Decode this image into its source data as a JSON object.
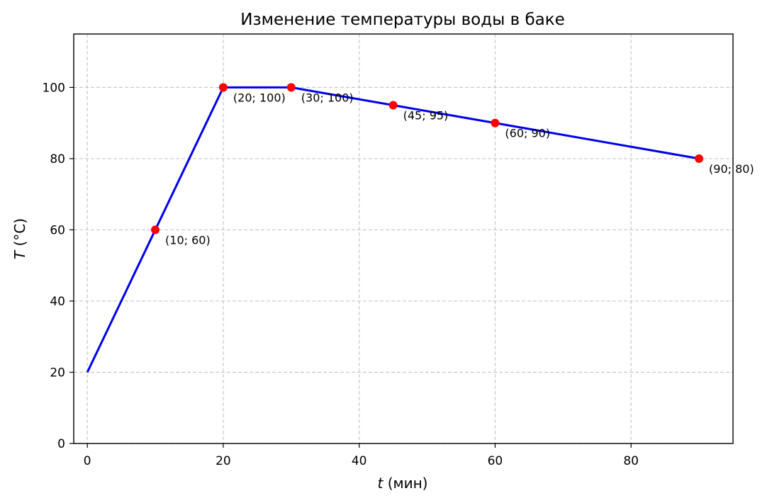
{
  "chart_data": {
    "type": "line",
    "title": "Изменение температуры воды в баке",
    "xlabel_var": "t",
    "xlabel_unit": " (мин)",
    "ylabel_var": "T",
    "ylabel_unit": " (°C)",
    "xlim": [
      -2,
      95
    ],
    "ylim": [
      0,
      115
    ],
    "xticks": [
      0,
      20,
      40,
      60,
      80
    ],
    "yticks": [
      0,
      20,
      40,
      60,
      80,
      100
    ],
    "grid": true,
    "series": [
      {
        "x": [
          0,
          10,
          20,
          30,
          45,
          60,
          90
        ],
        "y": [
          20,
          60,
          100,
          100,
          95,
          90,
          80
        ],
        "color": "#0000ee"
      }
    ],
    "points": [
      {
        "x": 10,
        "y": 60,
        "label": "(10; 60)"
      },
      {
        "x": 20,
        "y": 100,
        "label": "(20; 100)"
      },
      {
        "x": 30,
        "y": 100,
        "label": "(30; 100)"
      },
      {
        "x": 45,
        "y": 95,
        "label": "(45; 95)"
      },
      {
        "x": 60,
        "y": 90,
        "label": "(60; 90)"
      },
      {
        "x": 90,
        "y": 80,
        "label": "(90; 80)"
      }
    ],
    "marker_color": "#ff0000"
  }
}
